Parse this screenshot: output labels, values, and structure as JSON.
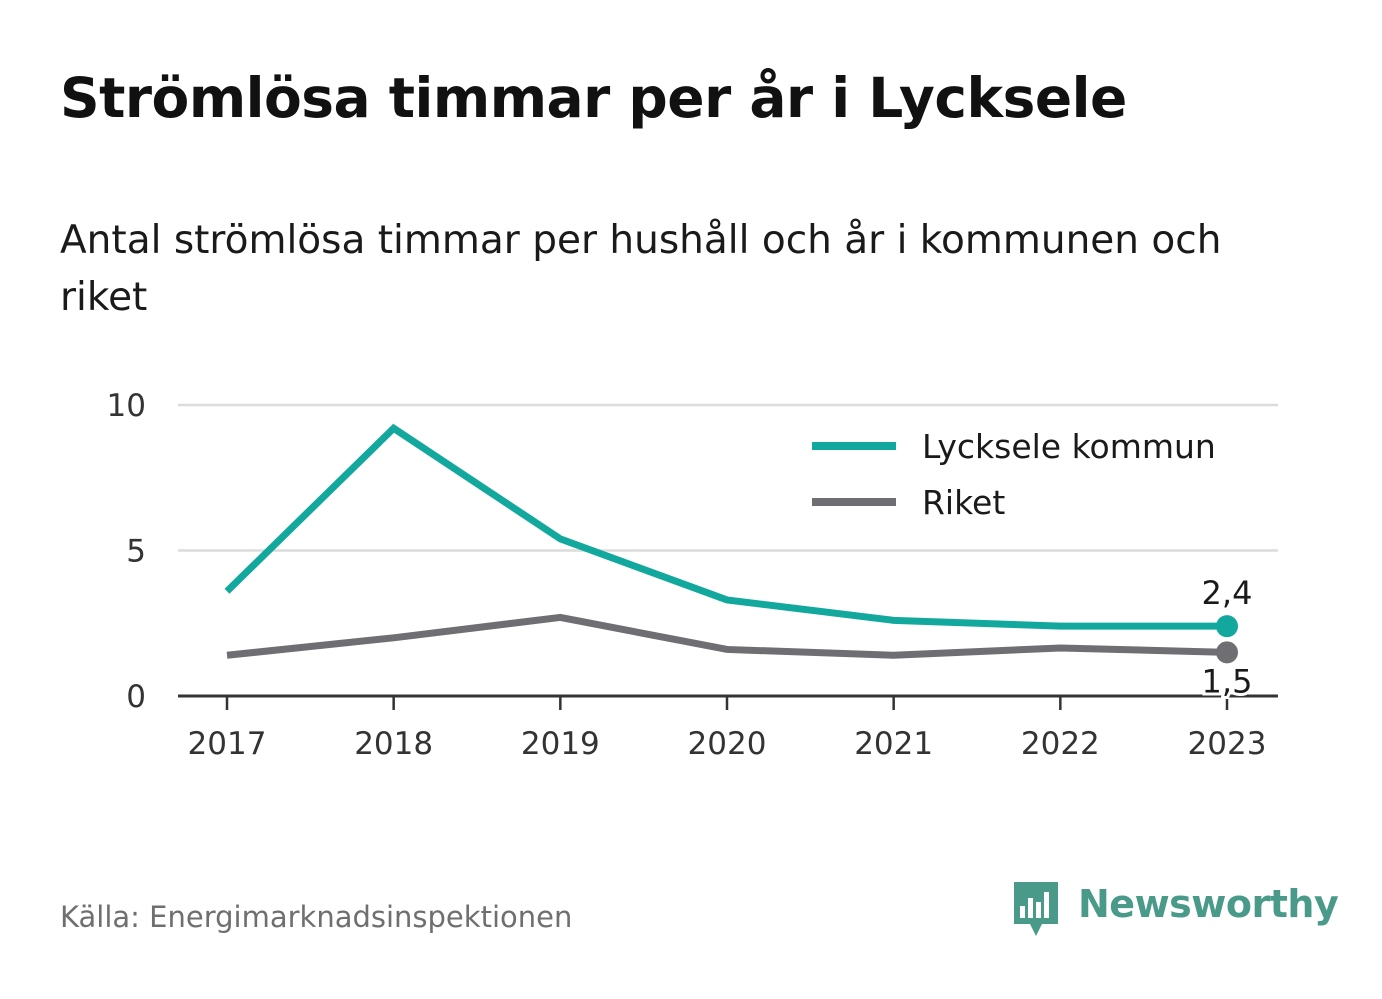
{
  "title": "Strömlösa timmar per år i Lycksele",
  "subtitle": "Antal strömlösa timmar per hushåll och år i kommunen och riket",
  "source": "Källa: Energimarknadsinspektionen",
  "brand": {
    "name": "Newsworthy",
    "logo_icon": "bar-chart-speech-bubble-icon",
    "color": "#4a9a8a"
  },
  "chart_data": {
    "type": "line",
    "x": [
      "2017",
      "2018",
      "2019",
      "2020",
      "2021",
      "2022",
      "2023"
    ],
    "ylim": [
      0,
      10
    ],
    "yticks": [
      0,
      5,
      10
    ],
    "grid": true,
    "legend": "top-right",
    "series": [
      {
        "name": "Lycksele kommun",
        "color": "#13a89e",
        "values": [
          3.6,
          9.2,
          5.4,
          3.3,
          2.6,
          2.4,
          2.4
        ],
        "end_label": "2,4"
      },
      {
        "name": "Riket",
        "color": "#6e6e73",
        "values": [
          1.4,
          2.0,
          2.7,
          1.6,
          1.4,
          1.65,
          1.5
        ],
        "end_label": "1,5"
      }
    ]
  }
}
